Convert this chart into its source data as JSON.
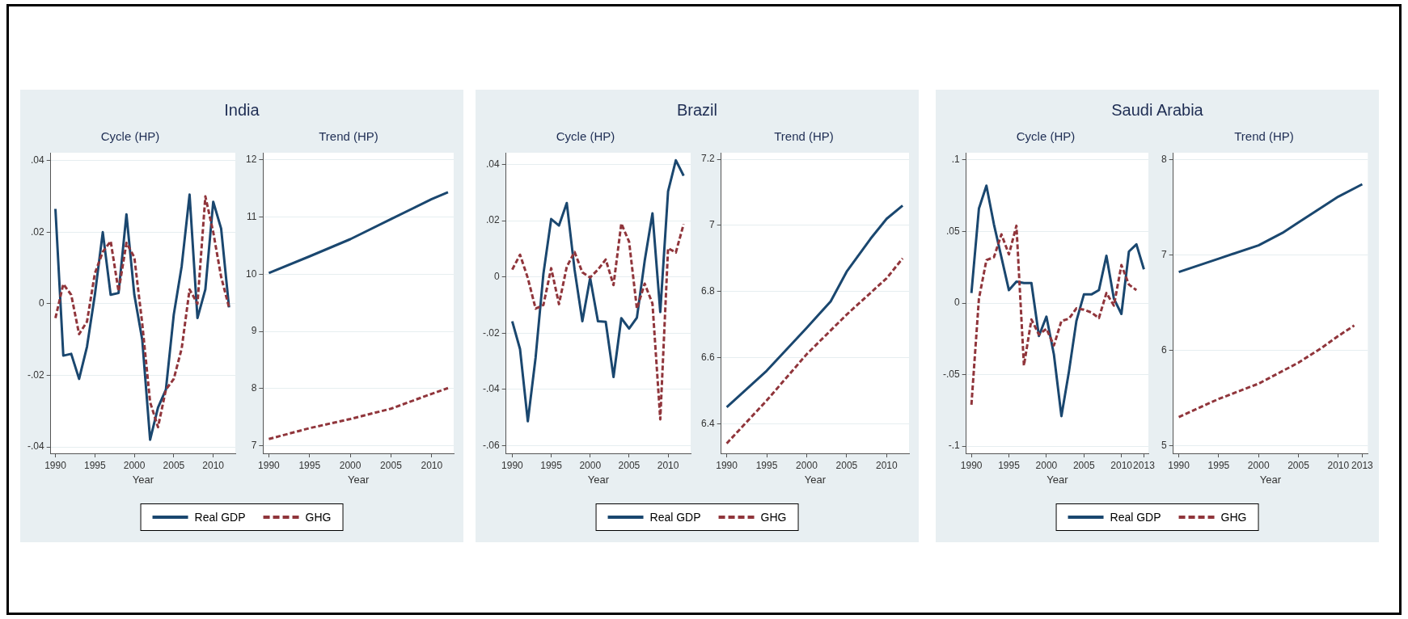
{
  "chart_data": [
    {
      "type": "line",
      "title": "India",
      "subtitle": "Cycle (HP)",
      "xlabel": "Year",
      "grid": "y",
      "legend": "bottom",
      "x": [
        1990,
        1991,
        1992,
        1993,
        1994,
        1995,
        1996,
        1997,
        1998,
        1999,
        2000,
        2001,
        2002,
        2003,
        2004,
        2005,
        2006,
        2007,
        2008,
        2009,
        2010,
        2011,
        2012
      ],
      "xlim": [
        1989.4,
        2012.8
      ],
      "xticks": [
        1990,
        1995,
        2000,
        2005,
        2010
      ],
      "ylim": [
        -0.0418,
        0.0422
      ],
      "yticks": [
        {
          "value": -0.04,
          "label": "-.04"
        },
        {
          "value": -0.02,
          "label": "-.02"
        },
        0,
        {
          "value": 0.02,
          "label": ".02"
        },
        {
          "value": 0.04,
          "label": ".04"
        }
      ],
      "series": [
        {
          "name": "Real GDP",
          "color": "#1a476f",
          "line_style": "solid",
          "values": [
            0.0265,
            -0.0145,
            -0.014,
            -0.021,
            -0.012,
            0.0025,
            0.02,
            0.0025,
            0.003,
            0.025,
            0.0025,
            -0.01,
            -0.038,
            -0.029,
            -0.024,
            -0.003,
            0.0105,
            0.0305,
            -0.004,
            0.004,
            0.0285,
            0.021,
            -0.001
          ]
        },
        {
          "name": "GHG",
          "color": "#90353b",
          "line_style": "dashed",
          "values": [
            -0.004,
            0.0055,
            0.0025,
            -0.0085,
            -0.005,
            0.0085,
            0.0145,
            0.0175,
            0.0035,
            0.017,
            0.013,
            -0.0055,
            -0.0275,
            -0.0345,
            -0.024,
            -0.021,
            -0.0125,
            0.004,
            0,
            0.03,
            0.02,
            0.0075,
            -0.001
          ]
        }
      ]
    },
    {
      "type": "line",
      "subtitle": "Trend (HP)",
      "xlabel": "Year",
      "grid": "y",
      "xlim": [
        1989.3,
        2012.7
      ],
      "xticks": [
        1990,
        1995,
        2000,
        2005,
        2010
      ],
      "ylim": [
        6.87,
        12.12
      ],
      "yticks": [
        7,
        8,
        9,
        10,
        11,
        12
      ],
      "series": [
        {
          "color": "#1a476f",
          "line_style": "solid",
          "x": [
            1990,
            1995,
            2000,
            2005,
            2010,
            2012
          ],
          "values": [
            10.02,
            10.31,
            10.61,
            10.96,
            11.31,
            11.43
          ]
        },
        {
          "color": "#90353b",
          "line_style": "dashed",
          "x": [
            1990,
            1995,
            2000,
            2005,
            2010,
            2012
          ],
          "values": [
            7.12,
            7.31,
            7.47,
            7.65,
            7.91,
            8.01
          ]
        }
      ]
    },
    {
      "type": "line",
      "title": "Brazil",
      "subtitle": "Cycle (HP)",
      "xlabel": "Year",
      "grid": "y",
      "legend": "bottom",
      "x": [
        1990,
        1991,
        1992,
        1993,
        1994,
        1995,
        1996,
        1997,
        1998,
        1999,
        2000,
        2001,
        2002,
        2003,
        2004,
        2005,
        2006,
        2007,
        2008,
        2009,
        2010,
        2011,
        2012
      ],
      "xlim": [
        1989.2,
        2012.9
      ],
      "xticks": [
        1990,
        1995,
        2000,
        2005,
        2010
      ],
      "ylim": [
        -0.0628,
        0.0442
      ],
      "yticks": [
        {
          "value": -0.06,
          "label": "-.06"
        },
        {
          "value": -0.04,
          "label": "-.04"
        },
        {
          "value": -0.02,
          "label": "-.02"
        },
        0,
        {
          "value": 0.02,
          "label": ".02"
        },
        {
          "value": 0.04,
          "label": ".04"
        }
      ],
      "series": [
        {
          "name": "Real GDP",
          "color": "#1a476f",
          "line_style": "solid",
          "values": [
            -0.0158,
            -0.0257,
            -0.0514,
            -0.0287,
            0.0011,
            0.0206,
            0.0183,
            0.0263,
            0.0026,
            -0.0158,
            -0.0004,
            -0.0158,
            -0.016,
            -0.0356,
            -0.0147,
            -0.0184,
            -0.0145,
            0.0057,
            0.0226,
            -0.0125,
            0.0304,
            0.0415,
            0.036
          ]
        },
        {
          "name": "GHG",
          "color": "#90353b",
          "line_style": "dashed",
          "values": [
            0.0026,
            0.0079,
            -0.0004,
            -0.0113,
            -0.01,
            0.0031,
            -0.0097,
            0.0036,
            0.0089,
            0.0016,
            -0.0002,
            0.0026,
            0.0062,
            -0.0029,
            0.019,
            0.0125,
            -0.0113,
            -0.0024,
            -0.0095,
            -0.0507,
            0.0102,
            0.0087,
            0.0188
          ]
        }
      ]
    },
    {
      "type": "line",
      "subtitle": "Trend (HP)",
      "xlabel": "Year",
      "grid": "y",
      "xlim": [
        1989.3,
        2012.8
      ],
      "xticks": [
        1990,
        1995,
        2000,
        2005,
        2010
      ],
      "ylim": [
        6.31,
        7.22
      ],
      "yticks": [
        6.4,
        6.6,
        6.8,
        7,
        7.2
      ],
      "series": [
        {
          "color": "#1a476f",
          "line_style": "solid",
          "x": [
            1990,
            1995,
            2000,
            2003,
            2005,
            2008,
            2010,
            2012
          ],
          "values": [
            6.45,
            6.56,
            6.69,
            6.77,
            6.86,
            6.96,
            7.02,
            7.06
          ]
        },
        {
          "color": "#90353b",
          "line_style": "dashed",
          "x": [
            1990,
            1995,
            2000,
            2005,
            2010,
            2012
          ],
          "values": [
            6.34,
            6.47,
            6.61,
            6.73,
            6.84,
            6.9
          ]
        }
      ]
    },
    {
      "type": "line",
      "title": "Saudi Arabia",
      "subtitle": "Cycle (HP)",
      "xlabel": "Year",
      "grid": "y",
      "legend": "bottom",
      "x": [
        1990,
        1991,
        1992,
        1993,
        1994,
        1995,
        1996,
        1997,
        1998,
        1999,
        2000,
        2001,
        2002,
        2003,
        2004,
        2005,
        2006,
        2007,
        2008,
        2009,
        2010,
        2011,
        2012,
        2013
      ],
      "xlim": [
        1989.3,
        2013.6
      ],
      "xticks": [
        1990,
        1995,
        2000,
        2005,
        2010,
        2013
      ],
      "ylim": [
        -0.105,
        0.105
      ],
      "yticks": [
        {
          "value": -0.1,
          "label": "-.1"
        },
        {
          "value": -0.05,
          "label": "-.05"
        },
        0,
        {
          "value": 0.05,
          "label": ".05"
        },
        {
          "value": 0.1,
          "label": ".1"
        }
      ],
      "series": [
        {
          "name": "Real GDP",
          "color": "#1a476f",
          "line_style": "solid",
          "values": [
            0.007,
            0.066,
            0.082,
            0.055,
            0.032,
            0.009,
            0.015,
            0.014,
            0.014,
            -0.023,
            -0.0095,
            -0.036,
            -0.079,
            -0.048,
            -0.0125,
            0.006,
            0.006,
            0.009,
            0.033,
            0.003,
            -0.0076,
            0.036,
            0.041,
            0.0236
          ]
        },
        {
          "name": "GHG",
          "color": "#90353b",
          "line_style": "dashed",
          "values": [
            -0.071,
            0.003,
            0.03,
            0.032,
            0.048,
            0.034,
            0.054,
            -0.0437,
            -0.0115,
            -0.022,
            -0.018,
            -0.0296,
            -0.0125,
            -0.011,
            -0.0037,
            -0.0047,
            -0.0066,
            -0.0105,
            0.007,
            -0.0018,
            0.0265,
            0.0129,
            0.009,
            null
          ]
        }
      ]
    },
    {
      "type": "line",
      "subtitle": "Trend (HP)",
      "xlabel": "Year",
      "grid": "y",
      "xlim": [
        1989.3,
        2013.7
      ],
      "xticks": [
        1990,
        1995,
        2000,
        2005,
        2010,
        2013
      ],
      "ylim": [
        4.92,
        8.07
      ],
      "yticks": [
        5,
        6,
        7,
        8
      ],
      "series": [
        {
          "color": "#1a476f",
          "line_style": "solid",
          "x": [
            1990,
            1995,
            2000,
            2003,
            2005,
            2010,
            2013
          ],
          "values": [
            6.82,
            6.96,
            7.1,
            7.23,
            7.34,
            7.61,
            7.74
          ]
        },
        {
          "color": "#90353b",
          "line_style": "dashed",
          "x": [
            1990,
            1995,
            2000,
            2005,
            2008,
            2010,
            2012
          ],
          "values": [
            5.3,
            5.49,
            5.65,
            5.87,
            6.03,
            6.15,
            6.26
          ]
        }
      ]
    }
  ]
}
